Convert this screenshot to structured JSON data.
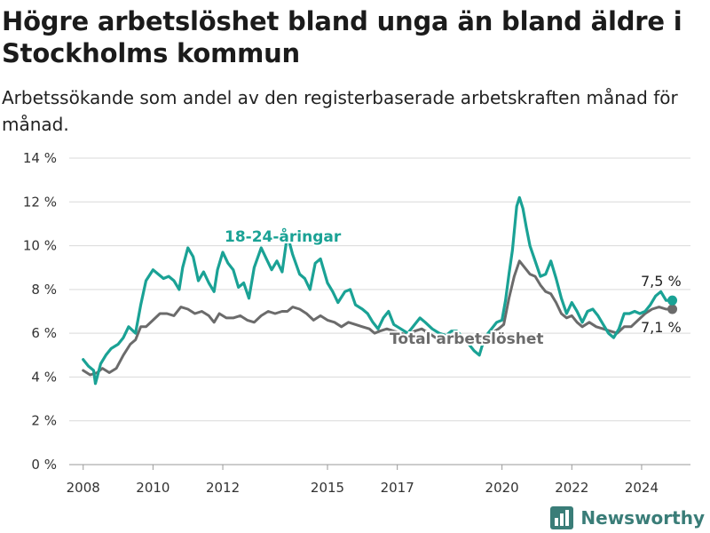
{
  "title": "Högre arbetslöshet bland unga än bland äldre i Stockholms kommun",
  "subtitle": "Arbetssökande som andel av den registerbaserade arbetskraften månad för månad.",
  "brand": {
    "name": "Newsworthy",
    "icon": "bar-chart-icon"
  },
  "colors": {
    "youth": "#1aa295",
    "total": "#6b6b6b",
    "grid": "#d9d9d9",
    "brand": "#3a7d78"
  },
  "chart_data": {
    "type": "line",
    "xlim": [
      2007.6,
      2025.4
    ],
    "ylim": [
      0,
      14
    ],
    "y_ticks": [
      0,
      2,
      4,
      6,
      8,
      10,
      12,
      14
    ],
    "y_tick_labels": [
      "0 %",
      "2 %",
      "4 %",
      "6 %",
      "8 %",
      "10 %",
      "12 %",
      "14 %"
    ],
    "x_ticks": [
      2008,
      2010,
      2012,
      2015,
      2017,
      2020,
      2022,
      2024
    ],
    "x_tick_labels": [
      "2008",
      "2010",
      "2012",
      "2015",
      "2017",
      "2020",
      "2022",
      "2024"
    ],
    "grid": true,
    "series": [
      {
        "name": "18-24-åringar",
        "role": "youth",
        "end_label": "7,5 %",
        "points": [
          [
            2008.0,
            4.8
          ],
          [
            2008.15,
            4.5
          ],
          [
            2008.3,
            4.3
          ],
          [
            2008.35,
            3.7
          ],
          [
            2008.5,
            4.6
          ],
          [
            2008.65,
            5.0
          ],
          [
            2008.8,
            5.3
          ],
          [
            2009.0,
            5.5
          ],
          [
            2009.15,
            5.8
          ],
          [
            2009.3,
            6.3
          ],
          [
            2009.5,
            6.0
          ],
          [
            2009.65,
            7.3
          ],
          [
            2009.8,
            8.4
          ],
          [
            2010.0,
            8.9
          ],
          [
            2010.15,
            8.7
          ],
          [
            2010.3,
            8.5
          ],
          [
            2010.45,
            8.6
          ],
          [
            2010.6,
            8.4
          ],
          [
            2010.75,
            8.0
          ],
          [
            2010.85,
            9.0
          ],
          [
            2011.0,
            9.9
          ],
          [
            2011.15,
            9.5
          ],
          [
            2011.3,
            8.4
          ],
          [
            2011.45,
            8.8
          ],
          [
            2011.6,
            8.3
          ],
          [
            2011.75,
            7.9
          ],
          [
            2011.85,
            8.9
          ],
          [
            2012.0,
            9.7
          ],
          [
            2012.15,
            9.2
          ],
          [
            2012.3,
            8.9
          ],
          [
            2012.45,
            8.1
          ],
          [
            2012.6,
            8.3
          ],
          [
            2012.75,
            7.6
          ],
          [
            2012.9,
            9.0
          ],
          [
            2013.1,
            9.9
          ],
          [
            2013.25,
            9.4
          ],
          [
            2013.4,
            8.9
          ],
          [
            2013.55,
            9.3
          ],
          [
            2013.7,
            8.8
          ],
          [
            2013.85,
            10.5
          ],
          [
            2014.0,
            9.6
          ],
          [
            2014.2,
            8.7
          ],
          [
            2014.35,
            8.5
          ],
          [
            2014.5,
            8.0
          ],
          [
            2014.65,
            9.2
          ],
          [
            2014.8,
            9.4
          ],
          [
            2015.0,
            8.3
          ],
          [
            2015.15,
            7.9
          ],
          [
            2015.3,
            7.4
          ],
          [
            2015.5,
            7.9
          ],
          [
            2015.65,
            8.0
          ],
          [
            2015.8,
            7.3
          ],
          [
            2016.0,
            7.1
          ],
          [
            2016.15,
            6.9
          ],
          [
            2016.3,
            6.5
          ],
          [
            2016.45,
            6.2
          ],
          [
            2016.6,
            6.7
          ],
          [
            2016.75,
            7.0
          ],
          [
            2016.9,
            6.4
          ],
          [
            2017.1,
            6.2
          ],
          [
            2017.3,
            6.0
          ],
          [
            2017.5,
            6.4
          ],
          [
            2017.65,
            6.7
          ],
          [
            2017.8,
            6.5
          ],
          [
            2018.0,
            6.2
          ],
          [
            2018.2,
            6.0
          ],
          [
            2018.4,
            5.9
          ],
          [
            2018.55,
            6.1
          ],
          [
            2018.7,
            6.1
          ],
          [
            2018.9,
            5.8
          ],
          [
            2019.05,
            5.5
          ],
          [
            2019.2,
            5.2
          ],
          [
            2019.35,
            5.0
          ],
          [
            2019.5,
            5.8
          ],
          [
            2019.7,
            6.2
          ],
          [
            2019.85,
            6.5
          ],
          [
            2020.0,
            6.6
          ],
          [
            2020.1,
            7.5
          ],
          [
            2020.2,
            8.7
          ],
          [
            2020.3,
            9.8
          ],
          [
            2020.42,
            11.8
          ],
          [
            2020.5,
            12.2
          ],
          [
            2020.6,
            11.7
          ],
          [
            2020.7,
            10.8
          ],
          [
            2020.8,
            10.0
          ],
          [
            2020.95,
            9.3
          ],
          [
            2021.1,
            8.6
          ],
          [
            2021.25,
            8.7
          ],
          [
            2021.4,
            9.3
          ],
          [
            2021.55,
            8.5
          ],
          [
            2021.7,
            7.6
          ],
          [
            2021.85,
            6.9
          ],
          [
            2022.0,
            7.4
          ],
          [
            2022.15,
            7.0
          ],
          [
            2022.3,
            6.5
          ],
          [
            2022.45,
            7.0
          ],
          [
            2022.6,
            7.1
          ],
          [
            2022.75,
            6.8
          ],
          [
            2022.9,
            6.4
          ],
          [
            2023.05,
            6.0
          ],
          [
            2023.2,
            5.8
          ],
          [
            2023.35,
            6.2
          ],
          [
            2023.5,
            6.9
          ],
          [
            2023.65,
            6.9
          ],
          [
            2023.8,
            7.0
          ],
          [
            2023.95,
            6.9
          ],
          [
            2024.1,
            7.0
          ],
          [
            2024.25,
            7.3
          ],
          [
            2024.4,
            7.7
          ],
          [
            2024.55,
            7.9
          ],
          [
            2024.7,
            7.5
          ],
          [
            2024.88,
            7.5
          ]
        ]
      },
      {
        "name": "Total arbetslöshet",
        "role": "total",
        "end_label": "7,1 %",
        "points": [
          [
            2008.0,
            4.3
          ],
          [
            2008.2,
            4.1
          ],
          [
            2008.4,
            4.2
          ],
          [
            2008.55,
            4.4
          ],
          [
            2008.75,
            4.2
          ],
          [
            2008.95,
            4.4
          ],
          [
            2009.15,
            5.0
          ],
          [
            2009.35,
            5.5
          ],
          [
            2009.5,
            5.7
          ],
          [
            2009.65,
            6.3
          ],
          [
            2009.8,
            6.3
          ],
          [
            2010.0,
            6.6
          ],
          [
            2010.2,
            6.9
          ],
          [
            2010.4,
            6.9
          ],
          [
            2010.6,
            6.8
          ],
          [
            2010.8,
            7.2
          ],
          [
            2011.0,
            7.1
          ],
          [
            2011.2,
            6.9
          ],
          [
            2011.4,
            7.0
          ],
          [
            2011.6,
            6.8
          ],
          [
            2011.75,
            6.5
          ],
          [
            2011.9,
            6.9
          ],
          [
            2012.1,
            6.7
          ],
          [
            2012.3,
            6.7
          ],
          [
            2012.5,
            6.8
          ],
          [
            2012.7,
            6.6
          ],
          [
            2012.9,
            6.5
          ],
          [
            2013.1,
            6.8
          ],
          [
            2013.3,
            7.0
          ],
          [
            2013.5,
            6.9
          ],
          [
            2013.7,
            7.0
          ],
          [
            2013.85,
            7.0
          ],
          [
            2014.0,
            7.2
          ],
          [
            2014.2,
            7.1
          ],
          [
            2014.4,
            6.9
          ],
          [
            2014.6,
            6.6
          ],
          [
            2014.8,
            6.8
          ],
          [
            2015.0,
            6.6
          ],
          [
            2015.2,
            6.5
          ],
          [
            2015.4,
            6.3
          ],
          [
            2015.6,
            6.5
          ],
          [
            2015.8,
            6.4
          ],
          [
            2016.0,
            6.3
          ],
          [
            2016.2,
            6.2
          ],
          [
            2016.35,
            6.0
          ],
          [
            2016.5,
            6.1
          ],
          [
            2016.7,
            6.2
          ],
          [
            2016.9,
            6.1
          ],
          [
            2017.1,
            6.0
          ],
          [
            2017.3,
            5.9
          ],
          [
            2017.5,
            6.1
          ],
          [
            2017.7,
            6.2
          ],
          [
            2017.9,
            6.0
          ],
          [
            2018.1,
            5.8
          ],
          [
            2018.3,
            5.8
          ],
          [
            2018.5,
            5.9
          ],
          [
            2018.7,
            5.8
          ],
          [
            2018.9,
            5.6
          ],
          [
            2019.1,
            5.6
          ],
          [
            2019.3,
            5.7
          ],
          [
            2019.5,
            5.8
          ],
          [
            2019.7,
            6.0
          ],
          [
            2019.9,
            6.2
          ],
          [
            2020.05,
            6.4
          ],
          [
            2020.2,
            7.6
          ],
          [
            2020.35,
            8.6
          ],
          [
            2020.5,
            9.3
          ],
          [
            2020.65,
            9.0
          ],
          [
            2020.8,
            8.7
          ],
          [
            2020.95,
            8.6
          ],
          [
            2021.1,
            8.2
          ],
          [
            2021.25,
            7.9
          ],
          [
            2021.4,
            7.8
          ],
          [
            2021.55,
            7.4
          ],
          [
            2021.7,
            6.9
          ],
          [
            2021.85,
            6.7
          ],
          [
            2022.0,
            6.8
          ],
          [
            2022.15,
            6.5
          ],
          [
            2022.3,
            6.3
          ],
          [
            2022.5,
            6.5
          ],
          [
            2022.7,
            6.3
          ],
          [
            2022.9,
            6.2
          ],
          [
            2023.1,
            6.1
          ],
          [
            2023.3,
            6.0
          ],
          [
            2023.5,
            6.3
          ],
          [
            2023.7,
            6.3
          ],
          [
            2023.9,
            6.6
          ],
          [
            2024.1,
            6.9
          ],
          [
            2024.3,
            7.1
          ],
          [
            2024.5,
            7.2
          ],
          [
            2024.7,
            7.1
          ],
          [
            2024.88,
            7.1
          ]
        ]
      }
    ]
  }
}
